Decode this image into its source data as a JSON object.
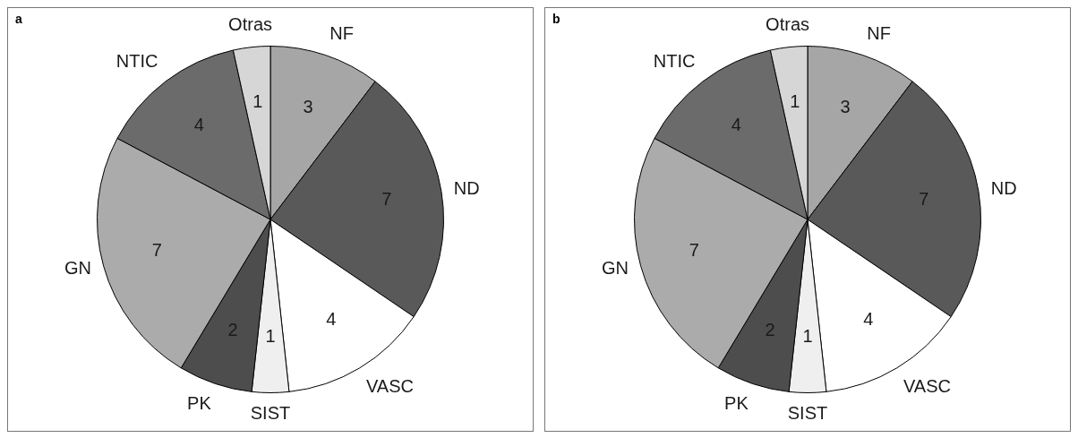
{
  "chart_data": [
    {
      "type": "pie",
      "title": "a",
      "categories": [
        "NF",
        "ND",
        "VASC",
        "SIST",
        "PK",
        "GN",
        "NTIC",
        "Otras"
      ],
      "values": [
        3,
        7,
        4,
        1,
        2,
        7,
        4,
        1
      ],
      "colors": [
        "#a6a6a6",
        "#595959",
        "#ffffff",
        "#efefef",
        "#4d4d4d",
        "#ababab",
        "#6b6b6b",
        "#d6d6d6"
      ],
      "data_labels": true
    },
    {
      "type": "pie",
      "title": "b",
      "categories": [
        "NF",
        "ND",
        "VASC",
        "SIST",
        "PK",
        "GN",
        "NTIC",
        "Otras"
      ],
      "values": [
        3,
        7,
        4,
        1,
        2,
        7,
        4,
        1
      ],
      "colors": [
        "#a6a6a6",
        "#595959",
        "#ffffff",
        "#efefef",
        "#4d4d4d",
        "#ababab",
        "#6b6b6b",
        "#d6d6d6"
      ],
      "data_labels": true
    }
  ]
}
